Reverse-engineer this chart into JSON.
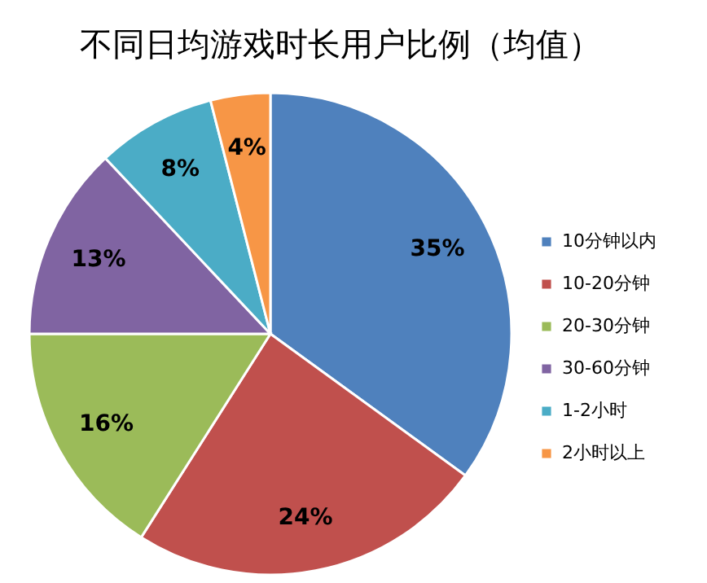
{
  "chart_data": {
    "type": "pie",
    "title": "不同日均游戏时长用户比例（均值）",
    "categories": [
      "10分钟以内",
      "10-20分钟",
      "20-30分钟",
      "30-60分钟",
      "1-2小时",
      "2小时以上"
    ],
    "values": [
      35,
      24,
      16,
      13,
      8,
      4
    ],
    "value_labels": [
      "35%",
      "24%",
      "16%",
      "13%",
      "8%",
      "4%"
    ],
    "colors": [
      "#4f81bd",
      "#c0504d",
      "#9bbb59",
      "#8064a2",
      "#4bacc6",
      "#f79646"
    ],
    "legend": "right"
  }
}
